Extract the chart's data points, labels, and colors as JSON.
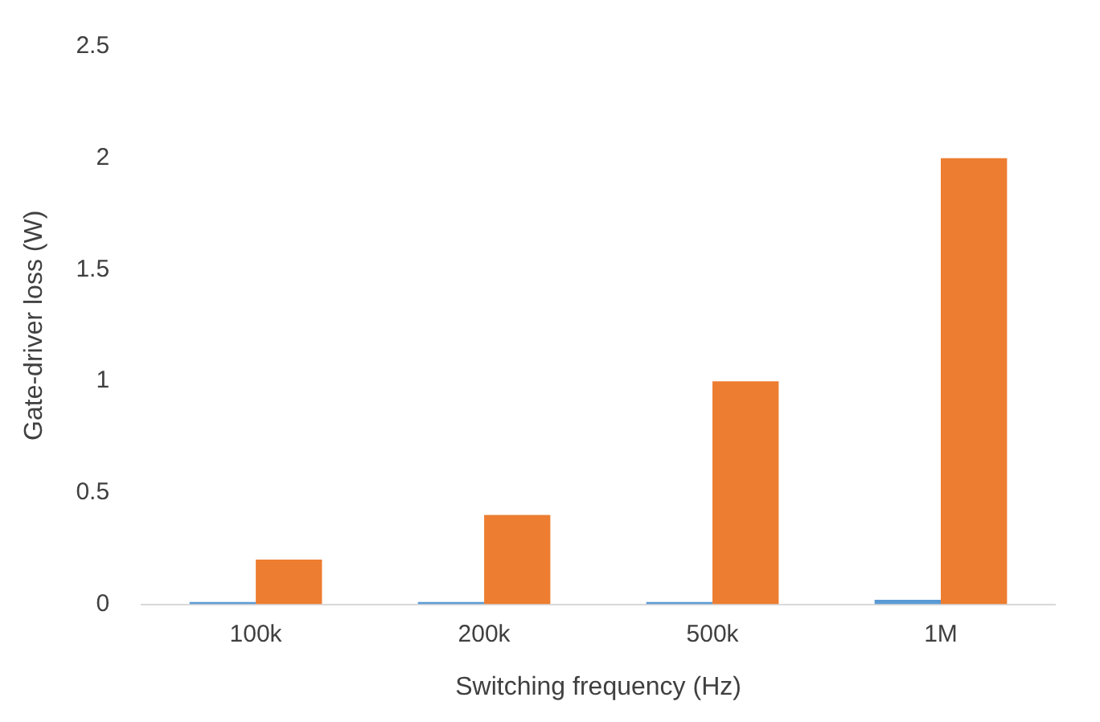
{
  "chart_data": {
    "type": "bar",
    "xlabel": "Switching frequency (Hz)",
    "ylabel": "Gate-driver loss (W)",
    "categories": [
      "100k",
      "200k",
      "500k",
      "1M"
    ],
    "series": [
      {
        "color": "#5b9bd5",
        "values": [
          0.01,
          0.01,
          0.01,
          0.02
        ]
      },
      {
        "color": "#ed7d31",
        "values": [
          0.2,
          0.4,
          1.0,
          2.0
        ]
      }
    ],
    "ylim": [
      0,
      2.5
    ],
    "yticks": [
      0,
      0.5,
      1,
      1.5,
      2,
      2.5
    ],
    "grid": false,
    "legend": false
  }
}
